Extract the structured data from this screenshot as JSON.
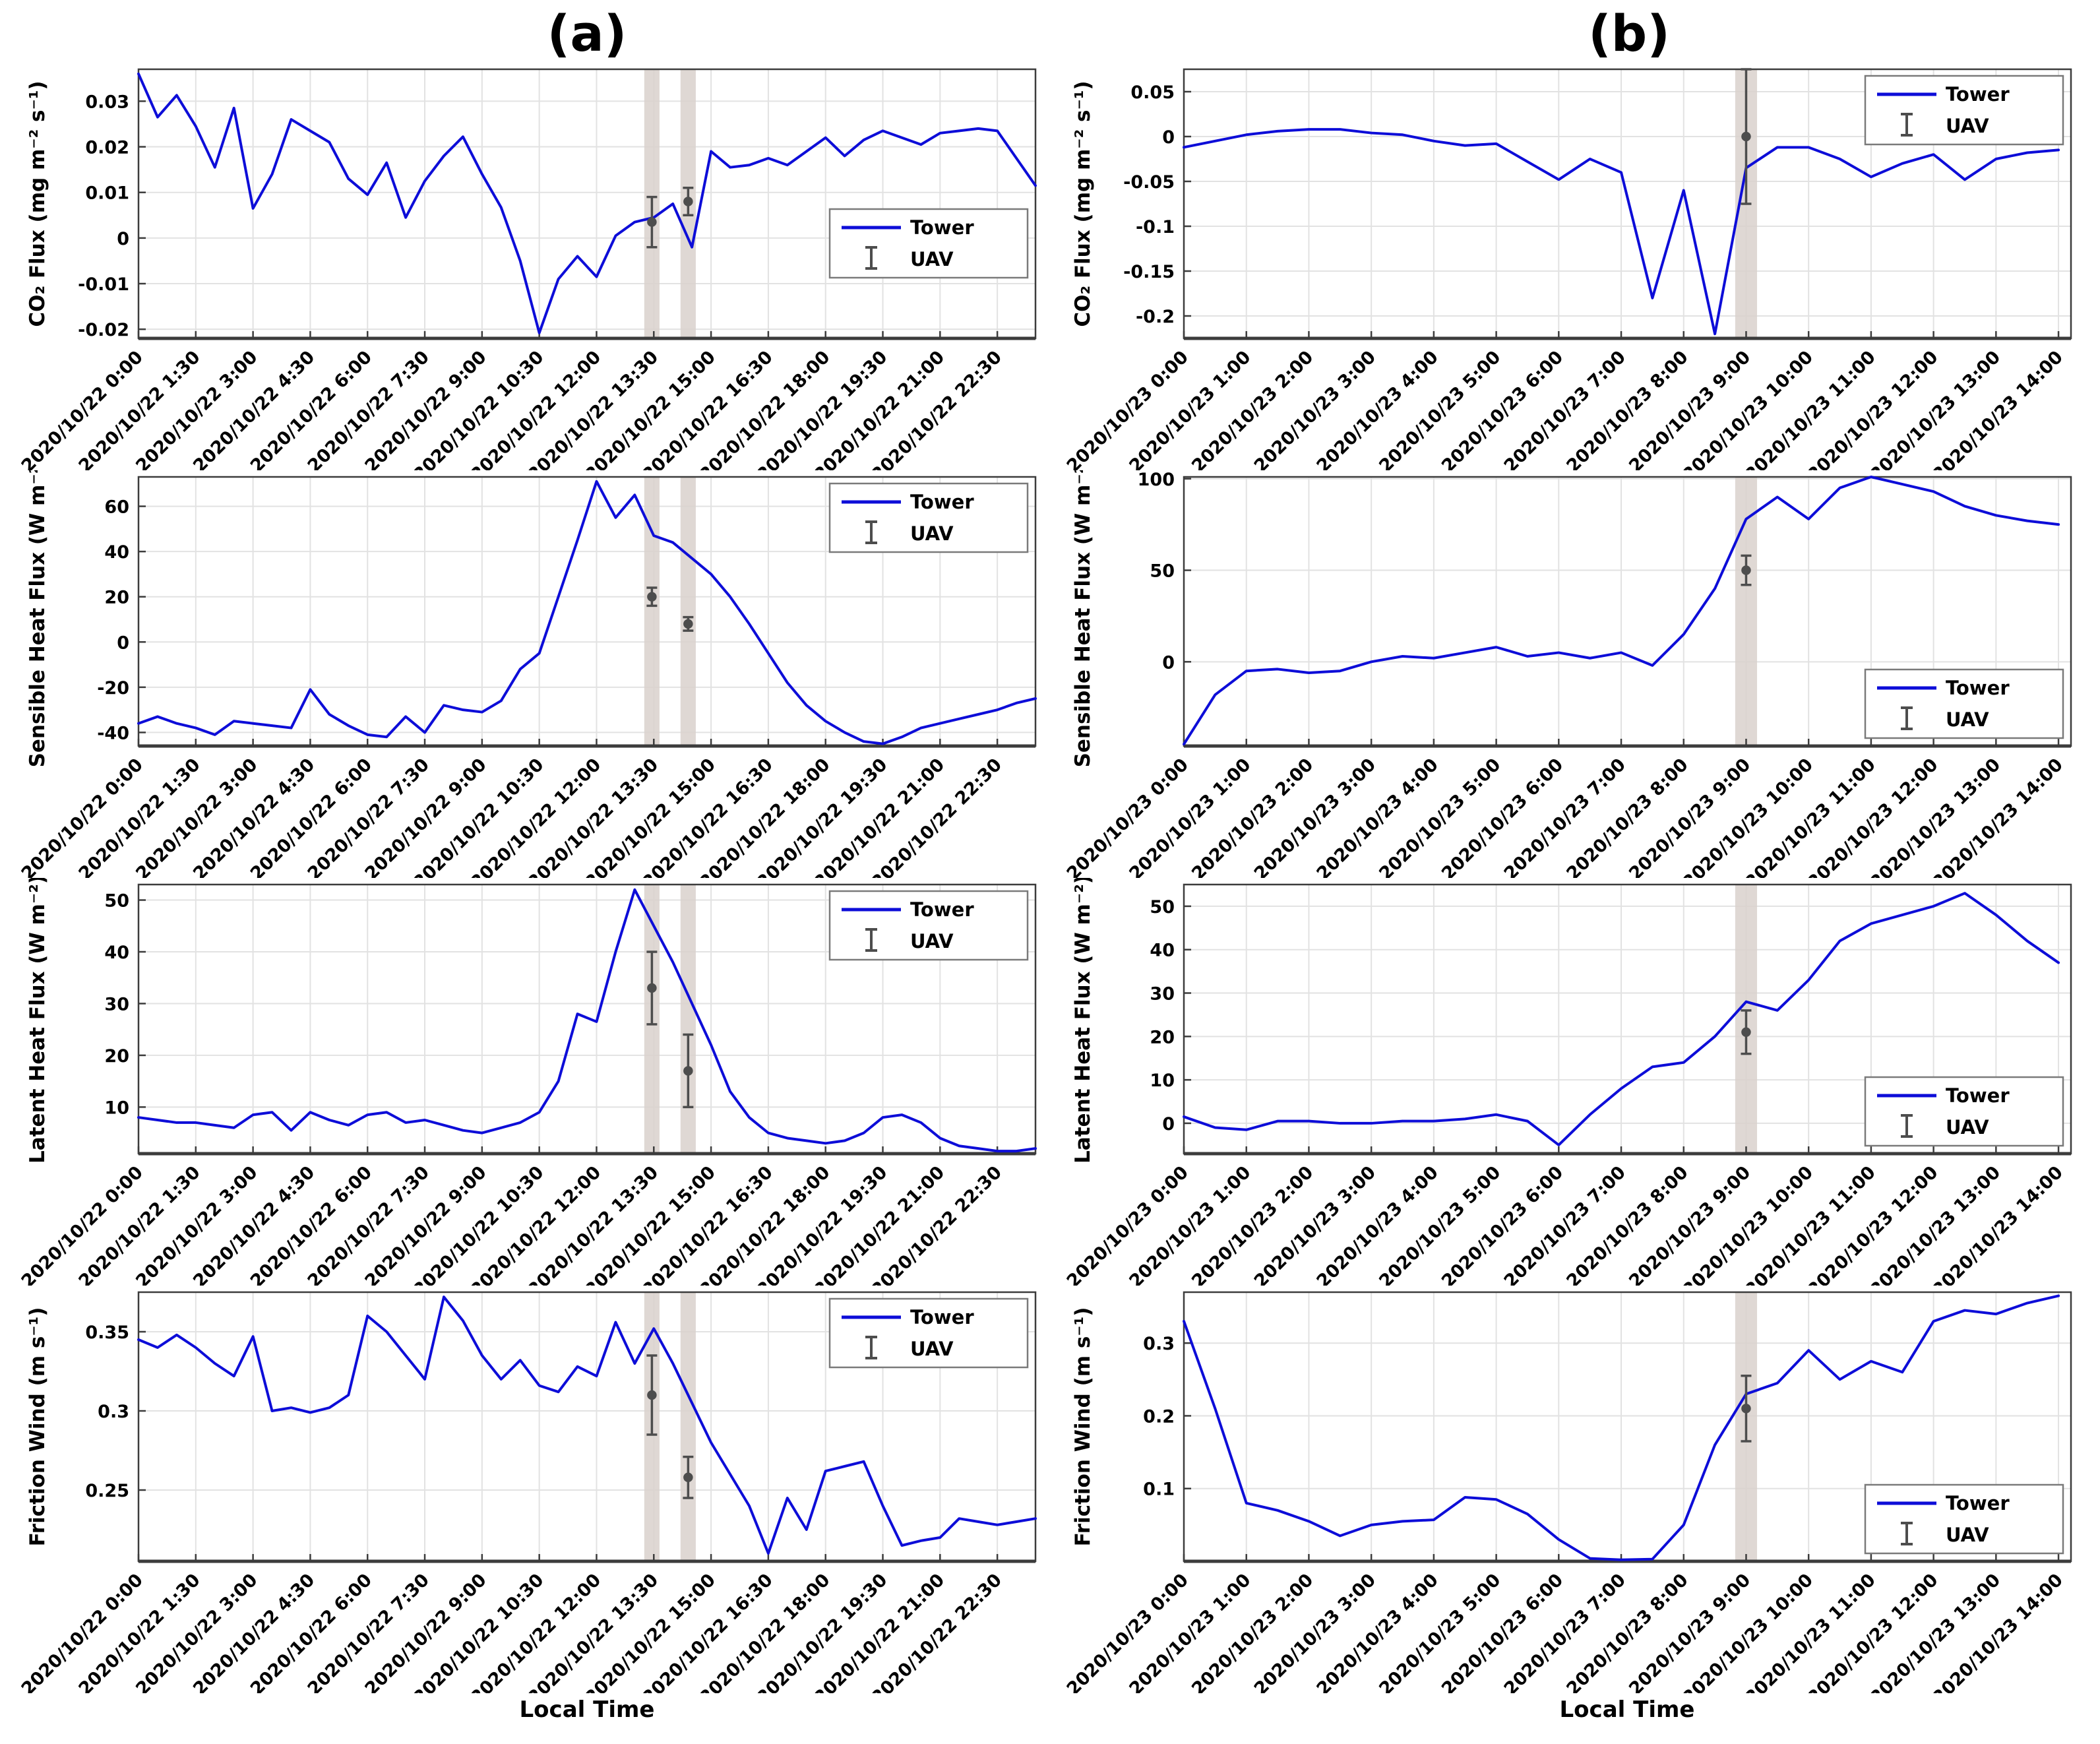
{
  "figure": {
    "title_a": "(a)",
    "title_b": "(b)",
    "x_axis_title": "Local Time",
    "legend": {
      "tower_label": "Tower",
      "uav_label": "UAV"
    },
    "colors": {
      "tower_line": "#0d0dd8",
      "uav_errorbar": "#4d4d4d",
      "uav_band": "#d9d1cc",
      "grid": "#e2e2e2",
      "axis_frame": "#3c3c3c",
      "text": "#000000",
      "legend_border": "#7a7a7a"
    }
  },
  "chart_data": {
    "type": "line",
    "x_axes": {
      "a": {
        "xlim": [
          0,
          23.5
        ],
        "x_start": 0,
        "x_step": 0.5,
        "xticks": [
          0,
          1.5,
          3,
          4.5,
          6,
          7.5,
          9,
          10.5,
          12,
          13.5,
          15,
          16.5,
          18,
          19.5,
          21,
          22.5
        ],
        "xtick_labels": [
          "2020/10/22 0:00",
          "2020/10/22 1:30",
          "2020/10/22 3:00",
          "2020/10/22 4:30",
          "2020/10/22 6:00",
          "2020/10/22 7:30",
          "2020/10/22 9:00",
          "2020/10/22 10:30",
          "2020/10/22 12:00",
          "2020/10/22 13:30",
          "2020/10/22 15:00",
          "2020/10/22 16:30",
          "2020/10/22 18:00",
          "2020/10/22 19:30",
          "2020/10/22 21:00",
          "2020/10/22 22:30"
        ]
      },
      "b": {
        "xlim": [
          0,
          14.2
        ],
        "x_start": 0,
        "x_step": 0.5,
        "xticks": [
          0,
          1,
          2,
          3,
          4,
          5,
          6,
          7,
          8,
          9,
          10,
          11,
          12,
          13,
          14
        ],
        "xtick_labels": [
          "2020/10/23 0:00",
          "2020/10/23 1:00",
          "2020/10/23 2:00",
          "2020/10/23 3:00",
          "2020/10/23 4:00",
          "2020/10/23 5:00",
          "2020/10/23 6:00",
          "2020/10/23 7:00",
          "2020/10/23 8:00",
          "2020/10/23 9:00",
          "2020/10/23 10:00",
          "2020/10/23 11:00",
          "2020/10/23 12:00",
          "2020/10/23 13:00",
          "2020/10/23 14:00"
        ]
      }
    },
    "panels": [
      {
        "id": "a1",
        "axis": "a",
        "legend_pos": "mr",
        "ylabel": "CO₂ Flux (mg m⁻² s⁻¹)",
        "ylim": [
          -0.022,
          0.037
        ],
        "yticks": [
          0.03,
          0.02,
          0.01,
          0,
          -0.01,
          -0.02
        ],
        "ytick_labels": [
          "0.03",
          "0.02",
          "0.01",
          "0",
          "-0.01",
          "-0.02"
        ],
        "tower_values": [
          0.036,
          0.0265,
          0.0313,
          0.0245,
          0.0155,
          0.0285,
          0.0065,
          0.014,
          0.026,
          0.0235,
          0.021,
          0.013,
          0.0095,
          0.0165,
          0.0045,
          0.0125,
          0.018,
          0.0222,
          0.014,
          0.0067,
          -0.005,
          -0.0208,
          -0.009,
          -0.004,
          -0.0085,
          0.0005,
          0.0035,
          0.0045,
          0.0075,
          -0.002,
          0.019,
          0.0155,
          0.016,
          0.0175,
          0.016,
          0.019,
          0.022,
          0.018,
          0.0215,
          0.0235,
          0.022,
          0.0205,
          0.023,
          0.0235,
          0.024,
          0.0235,
          0.0175,
          0.0115
        ],
        "uav_points": [
          {
            "x": 13.45,
            "y": 0.0035,
            "err": 0.0055
          },
          {
            "x": 14.4,
            "y": 0.008,
            "err": 0.003
          }
        ],
        "bands": [
          {
            "x": 13.45,
            "w": 0.4
          },
          {
            "x": 14.4,
            "w": 0.4
          }
        ]
      },
      {
        "id": "b1",
        "axis": "b",
        "legend_pos": "tr",
        "ylabel": "CO₂ Flux (mg m⁻² s⁻¹)",
        "ylim": [
          -0.225,
          0.075
        ],
        "yticks": [
          0.05,
          0,
          -0.05,
          -0.1,
          -0.15,
          -0.2
        ],
        "ytick_labels": [
          "0.05",
          "0",
          "-0.05",
          "-0.1",
          "-0.15",
          "-0.2"
        ],
        "tower_values": [
          -0.012,
          -0.005,
          0.002,
          0.006,
          0.008,
          0.008,
          0.004,
          0.002,
          -0.005,
          -0.01,
          -0.008,
          -0.028,
          -0.048,
          -0.025,
          -0.04,
          -0.18,
          -0.06,
          -0.22,
          -0.035,
          -0.012,
          -0.012,
          -0.025,
          -0.045,
          -0.03,
          -0.02,
          -0.048,
          -0.025,
          -0.018,
          -0.015
        ],
        "uav_points": [
          {
            "x": 9.0,
            "y": 0.0,
            "err": 0.075
          }
        ],
        "bands": [
          {
            "x": 9.0,
            "w": 0.35
          }
        ]
      },
      {
        "id": "a2",
        "axis": "a",
        "legend_pos": "tr",
        "ylabel": "Sensible Heat Flux (W m⁻²)",
        "ylim": [
          -46,
          73
        ],
        "yticks": [
          60,
          40,
          20,
          0,
          -20,
          -40
        ],
        "ytick_labels": [
          "60",
          "40",
          "20",
          "0",
          "-20",
          "-40"
        ],
        "tower_values": [
          -36,
          -33,
          -36,
          -38,
          -41,
          -35,
          -36,
          -37,
          -38,
          -21,
          -32,
          -37,
          -41,
          -42,
          -33,
          -40,
          -28,
          -30,
          -31,
          -26,
          -12,
          -5,
          20,
          45,
          71,
          55,
          65,
          47,
          44,
          37,
          30,
          20,
          8,
          -5,
          -18,
          -28,
          -35,
          -40,
          -44,
          -45,
          -42,
          -38,
          -36,
          -34,
          -32,
          -30,
          -27,
          -25
        ],
        "uav_points": [
          {
            "x": 13.45,
            "y": 20,
            "err": 4
          },
          {
            "x": 14.4,
            "y": 8,
            "err": 3
          }
        ],
        "bands": [
          {
            "x": 13.45,
            "w": 0.4
          },
          {
            "x": 14.4,
            "w": 0.4
          }
        ]
      },
      {
        "id": "b2",
        "axis": "b",
        "legend_pos": "br",
        "ylabel": "Sensible Heat Flux (W m⁻²)",
        "ylim": [
          -46,
          101
        ],
        "yticks": [
          100,
          50,
          0
        ],
        "ytick_labels": [
          "100",
          "50",
          "0"
        ],
        "tower_values": [
          -45,
          -18,
          -5,
          -4,
          -6,
          -5,
          0,
          3,
          2,
          5,
          8,
          3,
          5,
          2,
          5,
          -2,
          15,
          40,
          78,
          90,
          78,
          95,
          101,
          97,
          93,
          85,
          80,
          77,
          75
        ],
        "uav_points": [
          {
            "x": 9.0,
            "y": 50,
            "err": 8
          }
        ],
        "bands": [
          {
            "x": 9.0,
            "w": 0.35
          }
        ]
      },
      {
        "id": "a3",
        "axis": "a",
        "legend_pos": "tr",
        "ylabel": "Latent Heat Flux (W m⁻²)",
        "ylim": [
          1,
          53
        ],
        "yticks": [
          50,
          40,
          30,
          20,
          10
        ],
        "ytick_labels": [
          "50",
          "40",
          "30",
          "20",
          "10"
        ],
        "tower_values": [
          8,
          7.5,
          7,
          7,
          6.5,
          6,
          8.5,
          9,
          5.5,
          9,
          7.5,
          6.5,
          8.5,
          9,
          7,
          7.5,
          6.5,
          5.5,
          5,
          6,
          7,
          9,
          15,
          28,
          26.5,
          40,
          52,
          45,
          38,
          30,
          22,
          13,
          8,
          5,
          4,
          3.5,
          3,
          3.5,
          5,
          8,
          8.5,
          7,
          4,
          2.5,
          2,
          1.5,
          1.5,
          2
        ],
        "uav_points": [
          {
            "x": 13.45,
            "y": 33,
            "err": 7
          },
          {
            "x": 14.4,
            "y": 17,
            "err": 7
          }
        ],
        "bands": [
          {
            "x": 13.45,
            "w": 0.4
          },
          {
            "x": 14.4,
            "w": 0.4
          }
        ]
      },
      {
        "id": "b3",
        "axis": "b",
        "legend_pos": "br",
        "ylabel": "Latent Heat Flux (W m⁻²)",
        "ylim": [
          -7,
          55
        ],
        "yticks": [
          50,
          40,
          30,
          20,
          10,
          0
        ],
        "ytick_labels": [
          "50",
          "40",
          "30",
          "20",
          "10",
          "0"
        ],
        "tower_values": [
          1.5,
          -1,
          -1.5,
          0.5,
          0.5,
          0,
          0,
          0.5,
          0.5,
          1,
          2,
          0.5,
          -5,
          2,
          8,
          13,
          14,
          20,
          28,
          26,
          33,
          42,
          46,
          48,
          50,
          53,
          48,
          42,
          37
        ],
        "uav_points": [
          {
            "x": 9.0,
            "y": 21,
            "err": 5
          }
        ],
        "bands": [
          {
            "x": 9.0,
            "w": 0.35
          }
        ]
      },
      {
        "id": "a4",
        "axis": "a",
        "legend_pos": "tr",
        "ylabel": "Friction Wind (m s⁻¹)",
        "ylim": [
          0.205,
          0.375
        ],
        "yticks": [
          0.35,
          0.3,
          0.25
        ],
        "ytick_labels": [
          "0.35",
          "0.3",
          "0.25"
        ],
        "tower_values": [
          0.345,
          0.34,
          0.348,
          0.34,
          0.33,
          0.322,
          0.347,
          0.3,
          0.302,
          0.299,
          0.302,
          0.31,
          0.36,
          0.35,
          0.335,
          0.32,
          0.372,
          0.357,
          0.335,
          0.32,
          0.332,
          0.316,
          0.312,
          0.328,
          0.322,
          0.356,
          0.33,
          0.352,
          0.33,
          0.305,
          0.28,
          0.26,
          0.24,
          0.21,
          0.245,
          0.225,
          0.262,
          0.265,
          0.268,
          0.24,
          0.215,
          0.218,
          0.22,
          0.232,
          0.23,
          0.228,
          0.23,
          0.232
        ],
        "uav_points": [
          {
            "x": 13.45,
            "y": 0.31,
            "err": 0.025
          },
          {
            "x": 14.4,
            "y": 0.258,
            "err": 0.013
          }
        ],
        "bands": [
          {
            "x": 13.45,
            "w": 0.4
          },
          {
            "x": 14.4,
            "w": 0.4
          }
        ]
      },
      {
        "id": "b4",
        "axis": "b",
        "legend_pos": "br",
        "ylabel": "Friction Wind (m s⁻¹)",
        "ylim": [
          0,
          0.37
        ],
        "yticks": [
          0.3,
          0.2,
          0.1
        ],
        "ytick_labels": [
          "0.3",
          "0.2",
          "0.1"
        ],
        "tower_values": [
          0.33,
          0.21,
          0.08,
          0.07,
          0.055,
          0.035,
          0.05,
          0.055,
          0.057,
          0.088,
          0.085,
          0.065,
          0.03,
          0.004,
          0.002,
          0.003,
          0.05,
          0.16,
          0.23,
          0.245,
          0.29,
          0.25,
          0.275,
          0.26,
          0.33,
          0.345,
          0.34,
          0.355,
          0.365
        ],
        "uav_points": [
          {
            "x": 9.0,
            "y": 0.21,
            "err": 0.045
          }
        ],
        "bands": [
          {
            "x": 9.0,
            "w": 0.35
          }
        ]
      }
    ]
  }
}
